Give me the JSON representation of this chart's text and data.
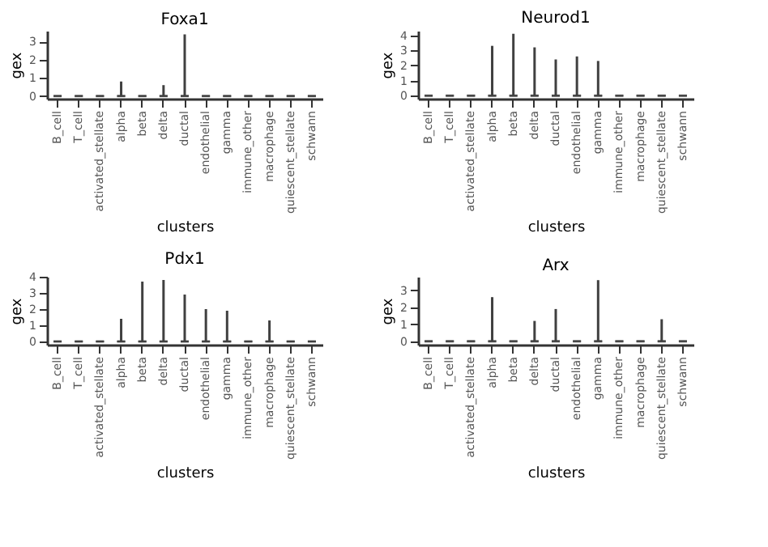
{
  "chart_data": [
    {
      "type": "box",
      "title": "Foxa1",
      "xlabel": "clusters",
      "ylabel": "gex",
      "color": "#404040",
      "grid": false,
      "categories": [
        "B_cell",
        "T_cell",
        "activated_stellate",
        "alpha",
        "beta",
        "delta",
        "ductal",
        "endothelial",
        "gamma",
        "immune_other",
        "macrophage",
        "quiescent_stellate",
        "schwann"
      ],
      "ylim": [
        -0.15,
        3.6
      ],
      "yticks": [
        0,
        1,
        2,
        3
      ],
      "boxes": [
        {
          "low": 0,
          "q1": 0,
          "median": 0,
          "q3": 0,
          "high": 0
        },
        {
          "low": 0,
          "q1": 0,
          "median": 0,
          "q3": 0,
          "high": 0
        },
        {
          "low": 0,
          "q1": 0,
          "median": 0,
          "q3": 0,
          "high": 0
        },
        {
          "low": 0,
          "q1": 0,
          "median": 0,
          "q3": 0,
          "high": 0.8
        },
        {
          "low": 0,
          "q1": 0,
          "median": 0,
          "q3": 0,
          "high": 0
        },
        {
          "low": 0,
          "q1": 0,
          "median": 0,
          "q3": 0,
          "high": 0.6
        },
        {
          "low": 0,
          "q1": 0,
          "median": 0,
          "q3": 0,
          "high": 3.4
        },
        {
          "low": 0,
          "q1": 0,
          "median": 0,
          "q3": 0,
          "high": 0
        },
        {
          "low": 0,
          "q1": 0,
          "median": 0,
          "q3": 0,
          "high": 0
        },
        {
          "low": 0,
          "q1": 0,
          "median": 0,
          "q3": 0,
          "high": 0
        },
        {
          "low": 0,
          "q1": 0,
          "median": 0,
          "q3": 0,
          "high": 0
        },
        {
          "low": 0,
          "q1": 0,
          "median": 0,
          "q3": 0,
          "high": 0
        },
        {
          "low": 0,
          "q1": 0,
          "median": 0,
          "q3": 0,
          "high": 0
        }
      ]
    },
    {
      "type": "box",
      "title": "Neurod1",
      "xlabel": "clusters",
      "ylabel": "gex",
      "color": "#404040",
      "grid": false,
      "categories": [
        "B_cell",
        "T_cell",
        "activated_stellate",
        "alpha",
        "beta",
        "delta",
        "ductal",
        "endothelial",
        "gamma",
        "immune_other",
        "macrophage",
        "quiescent_stellate",
        "schwann"
      ],
      "ylim": [
        -0.2,
        4.3
      ],
      "yticks": [
        0,
        1,
        2,
        3,
        4
      ],
      "boxes": [
        {
          "low": 0,
          "q1": 0,
          "median": 0,
          "q3": 0,
          "high": 0
        },
        {
          "low": 0,
          "q1": 0,
          "median": 0,
          "q3": 0,
          "high": 0
        },
        {
          "low": 0,
          "q1": 0,
          "median": 0,
          "q3": 0,
          "high": 0
        },
        {
          "low": 0,
          "q1": 0,
          "median": 0,
          "q3": 0,
          "high": 3.3
        },
        {
          "low": 0,
          "q1": 0,
          "median": 0,
          "q3": 0,
          "high": 4.1
        },
        {
          "low": 0,
          "q1": 0,
          "median": 0,
          "q3": 0,
          "high": 3.2
        },
        {
          "low": 0,
          "q1": 0,
          "median": 0,
          "q3": 0,
          "high": 2.4
        },
        {
          "low": 0,
          "q1": 0,
          "median": 0,
          "q3": 0,
          "high": 2.6
        },
        {
          "low": 0,
          "q1": 0,
          "median": 0,
          "q3": 0,
          "high": 2.3
        },
        {
          "low": 0,
          "q1": 0,
          "median": 0,
          "q3": 0,
          "high": 0
        },
        {
          "low": 0,
          "q1": 0,
          "median": 0,
          "q3": 0,
          "high": 0
        },
        {
          "low": 0,
          "q1": 0,
          "median": 0,
          "q3": 0,
          "high": 0
        },
        {
          "low": 0,
          "q1": 0,
          "median": 0,
          "q3": 0,
          "high": 0
        }
      ]
    },
    {
      "type": "box",
      "title": "Pdx1",
      "xlabel": "clusters",
      "ylabel": "gex",
      "color": "#404040",
      "grid": false,
      "categories": [
        "B_cell",
        "T_cell",
        "activated_stellate",
        "alpha",
        "beta",
        "delta",
        "ductal",
        "endothelial",
        "gamma",
        "immune_other",
        "macrophage",
        "quiescent_stellate",
        "schwann"
      ],
      "ylim": [
        -0.2,
        4.0
      ],
      "yticks": [
        0,
        1,
        2,
        3,
        4
      ],
      "boxes": [
        {
          "low": 0,
          "q1": 0,
          "median": 0,
          "q3": 0,
          "high": 0
        },
        {
          "low": 0,
          "q1": 0,
          "median": 0,
          "q3": 0,
          "high": 0
        },
        {
          "low": 0,
          "q1": 0,
          "median": 0,
          "q3": 0,
          "high": 0
        },
        {
          "low": 0,
          "q1": 0,
          "median": 0,
          "q3": 0,
          "high": 1.4
        },
        {
          "low": 0,
          "q1": 0,
          "median": 0,
          "q3": 0,
          "high": 3.7
        },
        {
          "low": 0,
          "q1": 0,
          "median": 0,
          "q3": 0,
          "high": 3.8
        },
        {
          "low": 0,
          "q1": 0,
          "median": 0,
          "q3": 0,
          "high": 2.9
        },
        {
          "low": 0,
          "q1": 0,
          "median": 0,
          "q3": 0,
          "high": 2.0
        },
        {
          "low": 0,
          "q1": 0,
          "median": 0,
          "q3": 0,
          "high": 1.9
        },
        {
          "low": 0,
          "q1": 0,
          "median": 0,
          "q3": 0,
          "high": 0
        },
        {
          "low": 0,
          "q1": 0,
          "median": 0,
          "q3": 0,
          "high": 1.3
        },
        {
          "low": 0,
          "q1": 0,
          "median": 0,
          "q3": 0,
          "high": 0
        },
        {
          "low": 0,
          "q1": 0,
          "median": 0,
          "q3": 0,
          "high": 0
        }
      ]
    },
    {
      "type": "box",
      "title": "Arx",
      "xlabel": "clusters",
      "ylabel": "gex",
      "color": "#404040",
      "grid": false,
      "categories": [
        "B_cell",
        "T_cell",
        "activated_stellate",
        "alpha",
        "beta",
        "delta",
        "ductal",
        "endothelial",
        "gamma",
        "immune_other",
        "macrophage",
        "quiescent_stellate",
        "schwann"
      ],
      "ylim": [
        -0.2,
        3.8
      ],
      "yticks": [
        0,
        1,
        2,
        3
      ],
      "boxes": [
        {
          "low": 0,
          "q1": 0,
          "median": 0,
          "q3": 0,
          "high": 0
        },
        {
          "low": 0,
          "q1": 0,
          "median": 0,
          "q3": 0,
          "high": 0
        },
        {
          "low": 0,
          "q1": 0,
          "median": 0,
          "q3": 0,
          "high": 0
        },
        {
          "low": 0,
          "q1": 0,
          "median": 0,
          "q3": 0,
          "high": 2.6
        },
        {
          "low": 0,
          "q1": 0,
          "median": 0,
          "q3": 0,
          "high": 0
        },
        {
          "low": 0,
          "q1": 0,
          "median": 0,
          "q3": 0,
          "high": 1.2
        },
        {
          "low": 0,
          "q1": 0,
          "median": 0,
          "q3": 0,
          "high": 1.9
        },
        {
          "low": 0,
          "q1": 0,
          "median": 0,
          "q3": 0,
          "high": 0
        },
        {
          "low": 0,
          "q1": 0,
          "median": 0,
          "q3": 0,
          "high": 3.6
        },
        {
          "low": 0,
          "q1": 0,
          "median": 0,
          "q3": 0,
          "high": 0
        },
        {
          "low": 0,
          "q1": 0,
          "median": 0,
          "q3": 0,
          "high": 0
        },
        {
          "low": 0,
          "q1": 0,
          "median": 0,
          "q3": 0,
          "high": 1.3
        },
        {
          "low": 0,
          "q1": 0,
          "median": 0,
          "q3": 0,
          "high": 0
        }
      ]
    }
  ]
}
